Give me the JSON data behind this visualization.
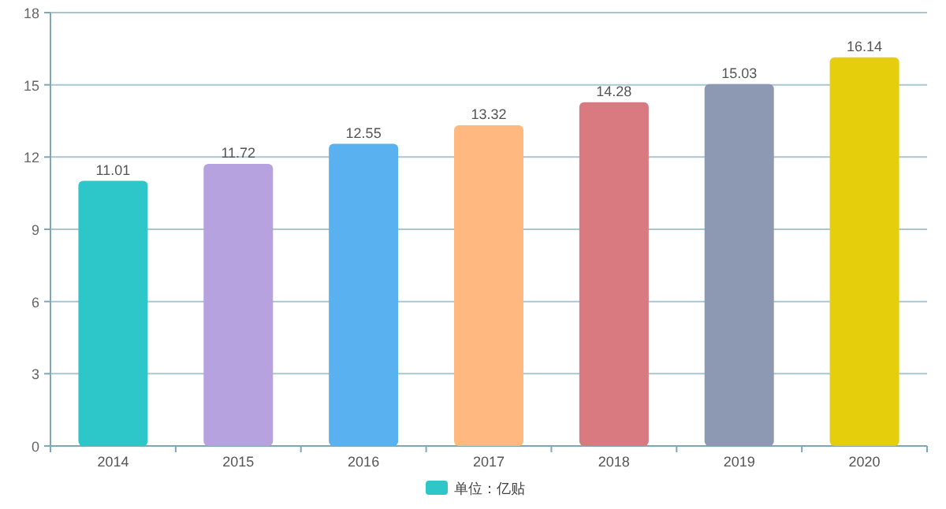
{
  "chart_data": {
    "type": "bar",
    "categories": [
      "2014",
      "2015",
      "2016",
      "2017",
      "2018",
      "2019",
      "2020"
    ],
    "series": [
      {
        "name": "单位：亿贴",
        "color": "#2ec7c9",
        "colors": [
          "#2ec7c9",
          "#b6a2de",
          "#5ab1ef",
          "#ffb980",
          "#d87a80",
          "#8d98b3",
          "#e5cf0d"
        ],
        "values": [
          11.01,
          11.72,
          12.55,
          13.32,
          14.28,
          15.03,
          16.14
        ]
      }
    ],
    "ylim": [
      0,
      18
    ],
    "yticks": [
      0,
      3,
      6,
      9,
      12,
      15,
      18
    ],
    "grid": "y",
    "legend": "bottom",
    "data_labels": true
  }
}
